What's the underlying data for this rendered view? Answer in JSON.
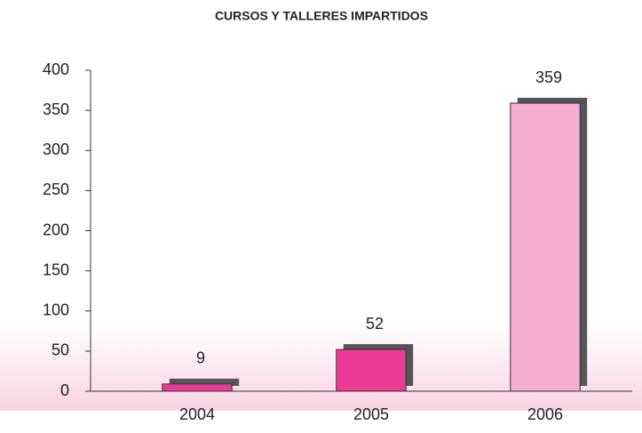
{
  "chart_data": {
    "type": "bar",
    "title": "CURSOS Y TALLERES IMPARTIDOS",
    "categories": [
      "2004",
      "2005",
      "2006"
    ],
    "values": [
      9,
      52,
      359
    ],
    "colors": [
      "#ec3b94",
      "#ec3b94",
      "#f4acd0"
    ],
    "shadow_color": "#555555",
    "ylim": [
      0,
      400
    ],
    "yticks": [
      0,
      50,
      100,
      150,
      200,
      250,
      300,
      350,
      400
    ],
    "grid": false
  }
}
